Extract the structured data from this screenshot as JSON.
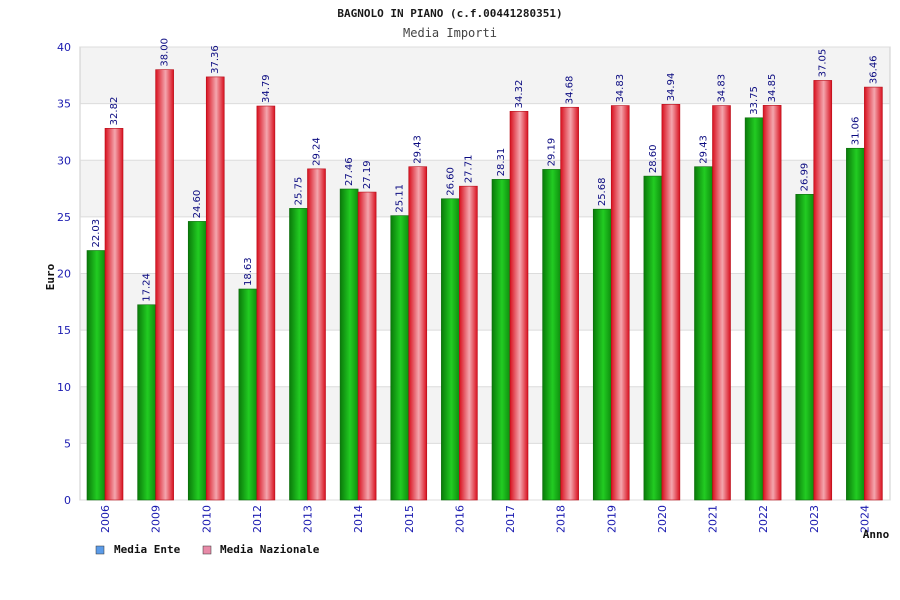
{
  "chart_data": {
    "type": "bar",
    "title": "BAGNOLO IN PIANO (c.f.00441280351)",
    "subtitle": "Media Importi",
    "xlabel": "Anno",
    "ylabel": "Euro",
    "ylim": [
      0,
      40
    ],
    "yticks": [
      "0",
      "5",
      "10",
      "15",
      "20",
      "25",
      "30",
      "35",
      "40"
    ],
    "grid": true,
    "legend_position": "bottom-left",
    "categories": [
      "2006",
      "2009",
      "2010",
      "2012",
      "2013",
      "2014",
      "2015",
      "2016",
      "2017",
      "2018",
      "2019",
      "2020",
      "2021",
      "2022",
      "2023",
      "2024"
    ],
    "series": [
      {
        "name": "Media Ente",
        "color": "#22b022",
        "values": [
          22.03,
          17.24,
          24.6,
          18.63,
          25.75,
          27.46,
          25.11,
          26.6,
          28.31,
          29.19,
          25.68,
          28.6,
          29.43,
          33.75,
          26.99,
          31.06
        ],
        "labels": [
          "22.03",
          "17.24",
          "24.60",
          "18.63",
          "25.75",
          "27.46",
          "25.11",
          "26.60",
          "28.31",
          "29.19",
          "25.68",
          "28.60",
          "29.43",
          "33.75",
          "26.99",
          "31.06"
        ]
      },
      {
        "name": "Media Nazionale",
        "color": "#e8202e",
        "values": [
          32.82,
          38.0,
          37.36,
          34.79,
          29.24,
          27.19,
          29.43,
          27.71,
          34.32,
          34.68,
          34.83,
          34.94,
          34.83,
          34.85,
          37.05,
          36.46
        ],
        "labels": [
          "32.82",
          "38.00",
          "37.36",
          "34.79",
          "29.24",
          "27.19",
          "29.43",
          "27.71",
          "34.32",
          "34.68",
          "34.83",
          "34.94",
          "34.83",
          "34.85",
          "37.05",
          "36.46"
        ]
      }
    ]
  },
  "legend": {
    "items": [
      {
        "label": "Media Ente",
        "color": "#5b9be8"
      },
      {
        "label": "Media Nazionale",
        "color": "#e88aa8"
      }
    ]
  }
}
